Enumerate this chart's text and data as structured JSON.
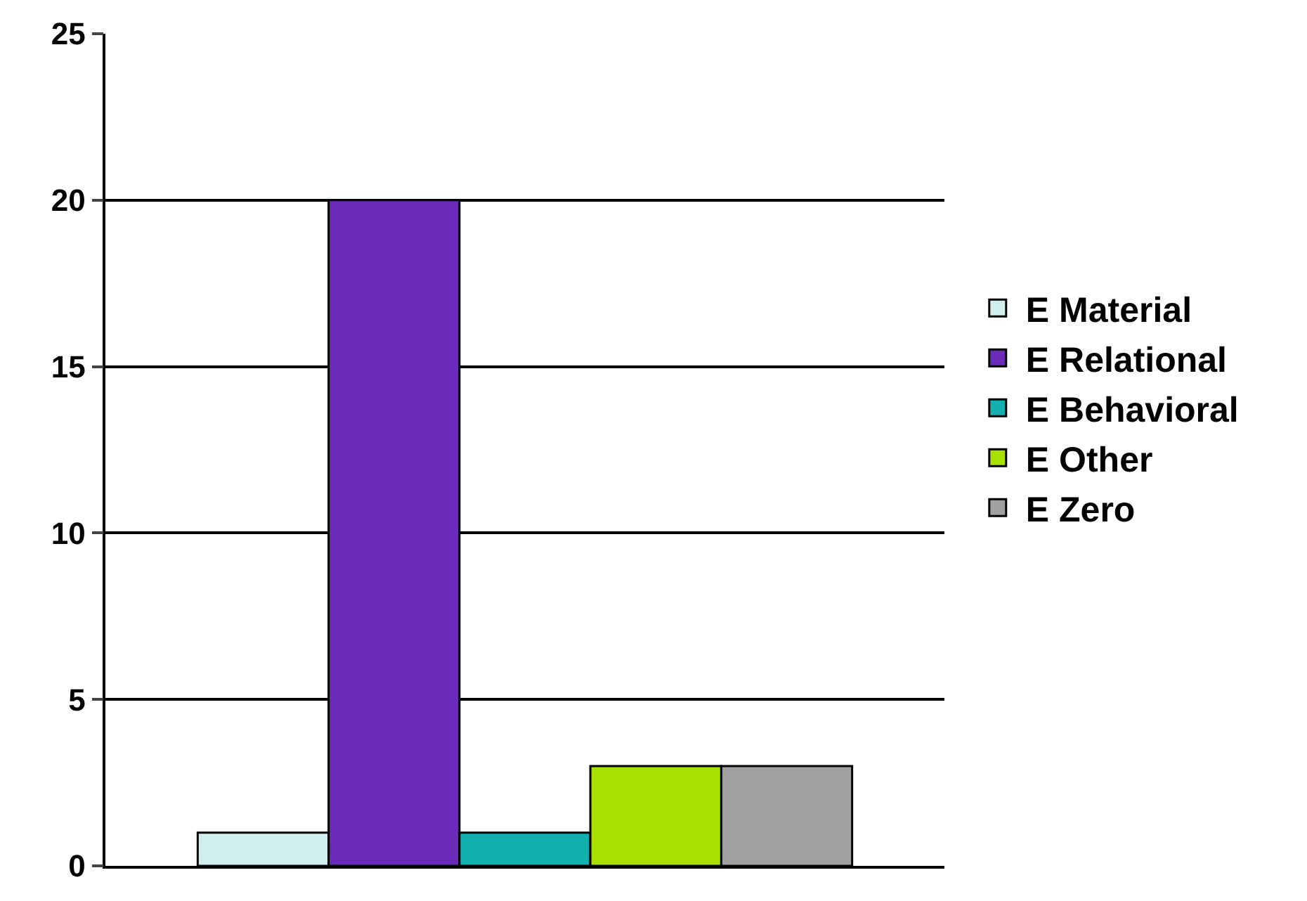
{
  "chart_data": {
    "type": "bar",
    "categories": [
      null
    ],
    "series": [
      {
        "name": "E Material",
        "color": "#d0eeee",
        "values": [
          1
        ]
      },
      {
        "name": "E Relational",
        "color": "#6a2bbb",
        "values": [
          20
        ]
      },
      {
        "name": "E Behavioral",
        "color": "#14b0b0",
        "values": [
          1
        ]
      },
      {
        "name": "E Other",
        "color": "#a8e000",
        "values": [
          3
        ]
      },
      {
        "name": "E Zero",
        "color": "#a0a0a0",
        "values": [
          3
        ]
      }
    ],
    "ylim": [
      0,
      25
    ],
    "yticks": [
      0,
      5,
      10,
      15,
      20,
      25
    ],
    "grid": "y",
    "legend": "right"
  }
}
